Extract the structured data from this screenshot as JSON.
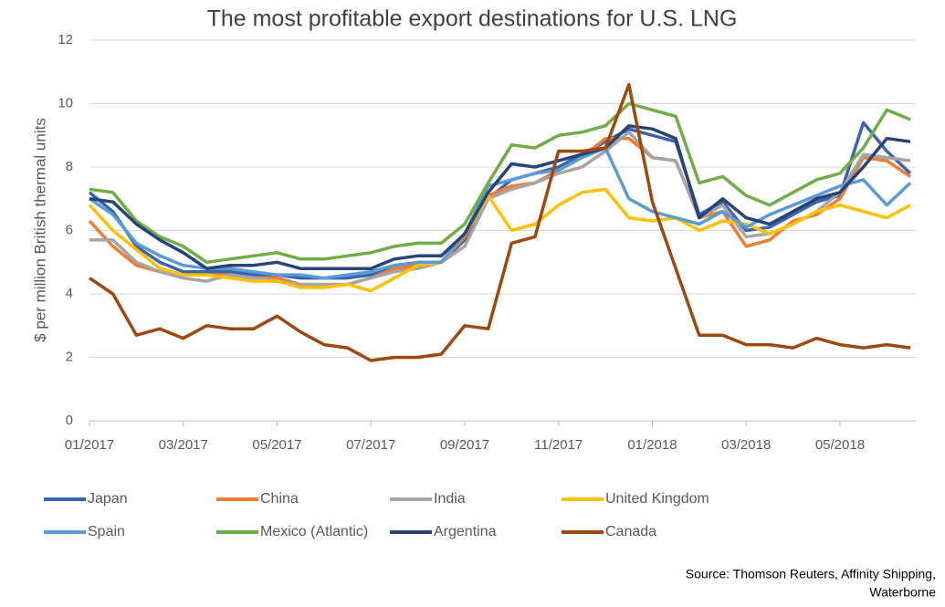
{
  "chart_data": {
    "type": "line",
    "title": "The most profitable export destinations for U.S. LNG",
    "y_label": "$ per million British thermal units",
    "source": [
      "Source: Thomson Reuters, Affinity Shipping,",
      "Waterborne"
    ],
    "categories": [
      "01/2017",
      null,
      null,
      null,
      "03/2017",
      null,
      null,
      null,
      "05/2017",
      null,
      null,
      null,
      "07/2017",
      null,
      null,
      null,
      "09/2017",
      null,
      null,
      null,
      "11/2017",
      null,
      null,
      null,
      "01/2018",
      null,
      null,
      null,
      "03/2018",
      null,
      null,
      null,
      "05/2018",
      null,
      null,
      null
    ],
    "ylim": [
      0,
      12
    ],
    "yticks": [
      0,
      2,
      4,
      6,
      8,
      10,
      12
    ],
    "grid": true,
    "series": [
      {
        "name": "Japan",
        "color": "#3a64b0",
        "values": [
          7.2,
          6.6,
          5.5,
          5.0,
          4.7,
          4.7,
          4.7,
          4.6,
          4.6,
          4.5,
          4.5,
          4.5,
          4.6,
          4.8,
          4.9,
          5.0,
          5.7,
          7.0,
          7.6,
          7.8,
          8.0,
          8.4,
          8.8,
          9.2,
          9.0,
          8.8,
          6.5,
          6.9,
          6.0,
          6.1,
          6.5,
          6.9,
          7.1,
          9.4,
          8.5,
          7.8
        ]
      },
      {
        "name": "China",
        "color": "#ed7d31",
        "values": [
          6.3,
          5.5,
          4.9,
          4.7,
          4.6,
          4.6,
          4.6,
          4.5,
          4.5,
          4.3,
          4.3,
          4.3,
          4.5,
          4.8,
          4.9,
          5.0,
          5.8,
          7.1,
          7.4,
          7.5,
          7.9,
          8.3,
          8.9,
          8.9,
          8.3,
          8.2,
          6.4,
          6.6,
          5.5,
          5.7,
          6.3,
          6.5,
          7.0,
          8.3,
          8.2,
          7.7
        ]
      },
      {
        "name": "India",
        "color": "#a5a5a5",
        "values": [
          5.7,
          5.7,
          5.0,
          4.7,
          4.5,
          4.4,
          4.6,
          4.5,
          4.4,
          4.3,
          4.3,
          4.3,
          4.5,
          4.7,
          4.8,
          5.0,
          5.5,
          7.0,
          7.3,
          7.5,
          7.8,
          8.0,
          8.5,
          9.1,
          8.3,
          8.2,
          6.4,
          6.8,
          5.8,
          5.9,
          6.2,
          6.6,
          7.2,
          8.4,
          8.3,
          8.2
        ]
      },
      {
        "name": "United Kingdom",
        "color": "#ffc000",
        "values": [
          6.8,
          6.0,
          5.4,
          4.8,
          4.6,
          4.6,
          4.5,
          4.4,
          4.4,
          4.2,
          4.2,
          4.3,
          4.1,
          4.5,
          4.9,
          5.0,
          5.9,
          7.1,
          6.0,
          6.2,
          6.8,
          7.2,
          7.3,
          6.4,
          6.3,
          6.4,
          6.0,
          6.3,
          6.2,
          5.9,
          6.2,
          6.6,
          6.8,
          6.6,
          6.4,
          6.8
        ]
      },
      {
        "name": "Spain",
        "color": "#5b9bd5",
        "values": [
          7.0,
          6.5,
          5.6,
          5.2,
          4.9,
          4.8,
          4.8,
          4.7,
          4.6,
          4.6,
          4.5,
          4.6,
          4.7,
          4.9,
          5.0,
          5.0,
          5.9,
          7.4,
          7.6,
          7.8,
          7.9,
          8.3,
          8.6,
          7.0,
          6.6,
          6.4,
          6.2,
          6.6,
          6.1,
          6.5,
          6.8,
          7.1,
          7.4,
          7.6,
          6.8,
          7.5
        ]
      },
      {
        "name": "Mexico (Atlantic)",
        "color": "#70ad47",
        "values": [
          7.3,
          7.2,
          6.3,
          5.8,
          5.5,
          5.0,
          5.1,
          5.2,
          5.3,
          5.1,
          5.1,
          5.2,
          5.3,
          5.5,
          5.6,
          5.6,
          6.2,
          7.5,
          8.7,
          8.6,
          9.0,
          9.1,
          9.3,
          10.0,
          9.8,
          9.6,
          7.5,
          7.7,
          7.1,
          6.8,
          7.2,
          7.6,
          7.8,
          8.6,
          9.8,
          9.5
        ]
      },
      {
        "name": "Argentina",
        "color": "#264478",
        "values": [
          7.0,
          6.9,
          6.2,
          5.7,
          5.3,
          4.8,
          4.9,
          4.9,
          5.0,
          4.8,
          4.8,
          4.8,
          4.8,
          5.1,
          5.2,
          5.2,
          5.9,
          7.2,
          8.1,
          8.0,
          8.2,
          8.4,
          8.6,
          9.3,
          9.2,
          8.9,
          6.4,
          7.0,
          6.4,
          6.2,
          6.6,
          7.0,
          7.2,
          8.0,
          8.9,
          8.8
        ]
      },
      {
        "name": "Canada",
        "color": "#9e480e",
        "values": [
          4.5,
          4.0,
          2.7,
          2.9,
          2.6,
          3.0,
          2.9,
          2.9,
          3.3,
          2.8,
          2.4,
          2.3,
          1.9,
          2.0,
          2.0,
          2.1,
          3.0,
          2.9,
          5.6,
          5.8,
          8.5,
          8.5,
          8.6,
          10.6,
          6.9,
          4.8,
          2.7,
          2.7,
          2.4,
          2.4,
          2.3,
          2.6,
          2.4,
          2.3,
          2.4,
          2.3
        ]
      }
    ]
  }
}
